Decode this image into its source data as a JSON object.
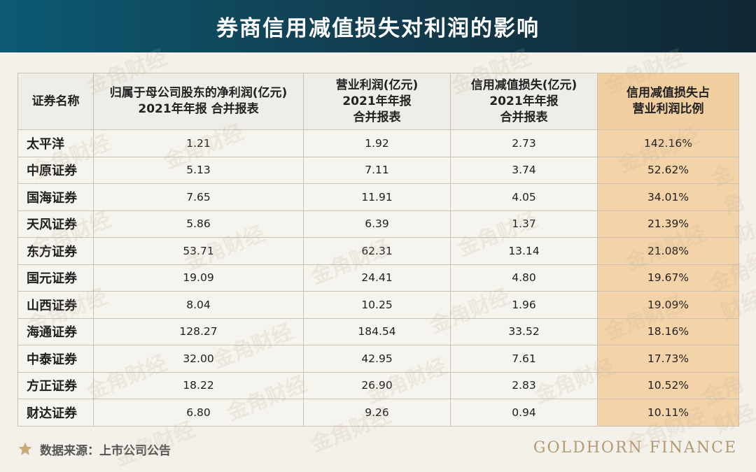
{
  "title": "券商信用减值损失对利润的影响",
  "watermark_text": "金角财经",
  "accent_color": "#f4d3a8",
  "banner_color": "#0f3d50",
  "chart_data": {
    "type": "table",
    "columns": [
      "证券名称",
      "归属于母公司股东的净利润(亿元)\n2021年年报 合并报表",
      "营业利润(亿元)\n2021年年报\n合并报表",
      "信用减值损失(亿元)\n2021年年报\n合并报表",
      "信用减值损失占\n营业利润比例"
    ],
    "rows": [
      [
        "太平洋",
        "1.21",
        "1.92",
        "2.73",
        "142.16%"
      ],
      [
        "中原证券",
        "5.13",
        "7.11",
        "3.74",
        "52.62%"
      ],
      [
        "国海证券",
        "7.65",
        "11.91",
        "4.05",
        "34.01%"
      ],
      [
        "天风证券",
        "5.86",
        "6.39",
        "1.37",
        "21.39%"
      ],
      [
        "东方证券",
        "53.71",
        "62.31",
        "13.14",
        "21.08%"
      ],
      [
        "国元证券",
        "19.09",
        "24.41",
        "4.80",
        "19.67%"
      ],
      [
        "山西证券",
        "8.04",
        "10.25",
        "1.96",
        "19.09%"
      ],
      [
        "海通证券",
        "128.27",
        "184.54",
        "33.52",
        "18.16%"
      ],
      [
        "中泰证券",
        "32.00",
        "42.95",
        "7.61",
        "17.73%"
      ],
      [
        "方正证券",
        "18.22",
        "26.90",
        "2.83",
        "10.52%"
      ],
      [
        "财达证券",
        "6.80",
        "9.26",
        "0.94",
        "10.11%"
      ]
    ]
  },
  "footer": {
    "source_icon": "star-icon",
    "source_text": "数据来源：上市公司公告",
    "brand": "GOLDHORN FINANCE"
  }
}
